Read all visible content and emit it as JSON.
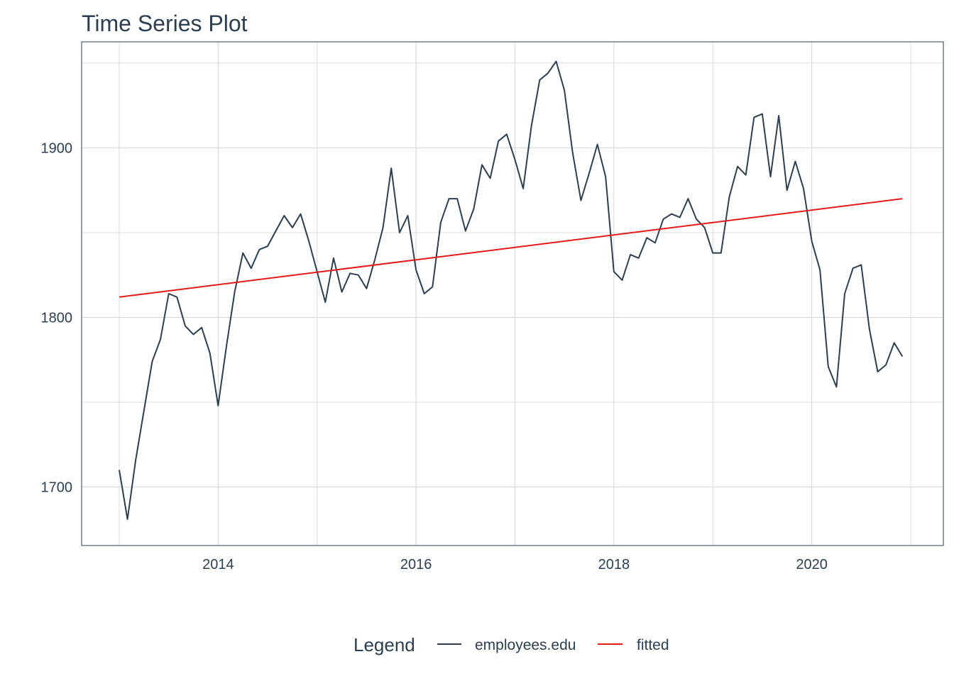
{
  "chart_data": {
    "type": "line",
    "title": "Time Series Plot",
    "xlabel": "",
    "ylabel": "",
    "x_ticks": [
      2014,
      2016,
      2018,
      2020
    ],
    "y_ticks": [
      1700,
      1800,
      1900
    ],
    "xlim": [
      2012.62,
      2021.33
    ],
    "ylim": [
      1665.5,
      1962.5
    ],
    "grid": true,
    "legend": {
      "title": "Legend",
      "position": "bottom",
      "entries": [
        "employees.edu",
        "fitted"
      ]
    },
    "colors": {
      "employees.edu": "#2c3e50",
      "fitted": "#e31a1c"
    },
    "series": [
      {
        "name": "employees.edu",
        "color": "#2c3e50",
        "x_start": 2013.0,
        "step": 0.08333,
        "values": [
          1710,
          1681,
          1716,
          1745,
          1774,
          1787,
          1814,
          1812,
          1795,
          1790,
          1794,
          1779,
          1748,
          1783,
          1815,
          1838,
          1829,
          1840,
          1842,
          1851,
          1860,
          1853,
          1861,
          1845,
          1827,
          1809,
          1835,
          1815,
          1826,
          1825,
          1817,
          1834,
          1853,
          1888,
          1850,
          1860,
          1828,
          1814,
          1818,
          1856,
          1870,
          1870,
          1851,
          1864,
          1890,
          1882,
          1904,
          1908,
          1893,
          1876,
          1913,
          1940,
          1944,
          1951,
          1934,
          1897,
          1869,
          1885,
          1902,
          1883,
          1827,
          1822,
          1837,
          1835,
          1847,
          1844,
          1858,
          1861,
          1859,
          1870,
          1858,
          1853,
          1838,
          1838,
          1871,
          1889,
          1884,
          1918,
          1920,
          1883,
          1919,
          1875,
          1892,
          1876,
          1845,
          1828,
          1771,
          1759,
          1814,
          1829,
          1831,
          1793,
          1768,
          1772,
          1785,
          1777
        ]
      },
      {
        "name": "fitted",
        "color": "#e31a1c",
        "x": [
          2013.0,
          2020.9167
        ],
        "values": [
          1812,
          1870
        ]
      }
    ]
  }
}
